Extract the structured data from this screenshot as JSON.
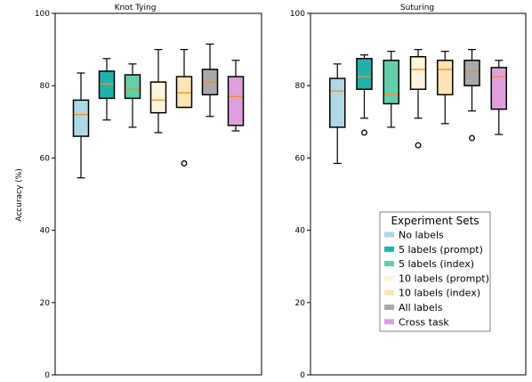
{
  "chart_data": [
    {
      "type": "box",
      "title": "Knot Tying",
      "ylabel": "Accuracy (%)",
      "ylim": [
        0,
        100
      ],
      "yticks": [
        0,
        20,
        40,
        60,
        80,
        100
      ],
      "series": [
        {
          "name": "No labels",
          "color": "#add8e6",
          "q1": 66.0,
          "median": 72.0,
          "q3": 76.0,
          "whisker_low": 54.5,
          "whisker_high": 83.5,
          "outliers": []
        },
        {
          "name": "5 labels (prompt)",
          "color": "#20b2aa",
          "q1": 76.5,
          "median": 80.5,
          "q3": 84.0,
          "whisker_low": 70.5,
          "whisker_high": 87.5,
          "outliers": []
        },
        {
          "name": "5 labels (index)",
          "color": "#66cdaa",
          "q1": 76.5,
          "median": 79.0,
          "q3": 83.0,
          "whisker_low": 68.5,
          "whisker_high": 86.0,
          "outliers": []
        },
        {
          "name": "10 labels (prompt)",
          "color": "#fff5dc",
          "q1": 72.5,
          "median": 76.0,
          "q3": 81.0,
          "whisker_low": 67.0,
          "whisker_high": 90.0,
          "outliers": []
        },
        {
          "name": "10 labels (index)",
          "color": "#ffe4b5",
          "q1": 74.0,
          "median": 78.0,
          "q3": 82.5,
          "whisker_low": 74.0,
          "whisker_high": 90.0,
          "outliers": [
            58.5
          ]
        },
        {
          "name": "All labels",
          "color": "#a9a9a9",
          "q1": 77.5,
          "median": 81.0,
          "q3": 84.5,
          "whisker_low": 71.5,
          "whisker_high": 91.5,
          "outliers": []
        },
        {
          "name": "Cross task",
          "color": "#dda0dd",
          "q1": 69.0,
          "median": 77.0,
          "q3": 82.5,
          "whisker_low": 67.5,
          "whisker_high": 87.0,
          "outliers": []
        }
      ]
    },
    {
      "type": "box",
      "title": "Suturing",
      "ylim": [
        0,
        100
      ],
      "yticks": [
        0,
        20,
        40,
        60,
        80,
        100
      ],
      "legend": {
        "title": "Experiment Sets",
        "position": "lower-right"
      },
      "series": [
        {
          "name": "No labels",
          "color": "#add8e6",
          "q1": 68.5,
          "median": 78.5,
          "q3": 82.0,
          "whisker_low": 58.5,
          "whisker_high": 86.0,
          "outliers": []
        },
        {
          "name": "5 labels (prompt)",
          "color": "#20b2aa",
          "q1": 79.0,
          "median": 82.5,
          "q3": 87.5,
          "whisker_low": 71.0,
          "whisker_high": 88.5,
          "outliers": [
            67.0
          ]
        },
        {
          "name": "5 labels (index)",
          "color": "#66cdaa",
          "q1": 75.0,
          "median": 77.5,
          "q3": 87.0,
          "whisker_low": 68.5,
          "whisker_high": 89.5,
          "outliers": []
        },
        {
          "name": "10 labels (prompt)",
          "color": "#fff5dc",
          "q1": 79.0,
          "median": 84.5,
          "q3": 88.0,
          "whisker_low": 71.0,
          "whisker_high": 90.0,
          "outliers": [
            63.5
          ]
        },
        {
          "name": "10 labels (index)",
          "color": "#ffe4b5",
          "q1": 77.5,
          "median": 84.5,
          "q3": 87.0,
          "whisker_low": 69.5,
          "whisker_high": 89.5,
          "outliers": []
        },
        {
          "name": "All labels",
          "color": "#a9a9a9",
          "q1": 80.0,
          "median": 84.0,
          "q3": 87.0,
          "whisker_low": 73.0,
          "whisker_high": 90.0,
          "outliers": [
            65.5
          ]
        },
        {
          "name": "Cross task",
          "color": "#dda0dd",
          "q1": 73.5,
          "median": 82.5,
          "q3": 85.0,
          "whisker_low": 66.5,
          "whisker_high": 87.0,
          "outliers": []
        }
      ]
    }
  ],
  "style": {
    "median_color": "#ff8c1a",
    "box_edge_color": "#000000",
    "axes_color": "#000000",
    "background": "#ffffff"
  }
}
